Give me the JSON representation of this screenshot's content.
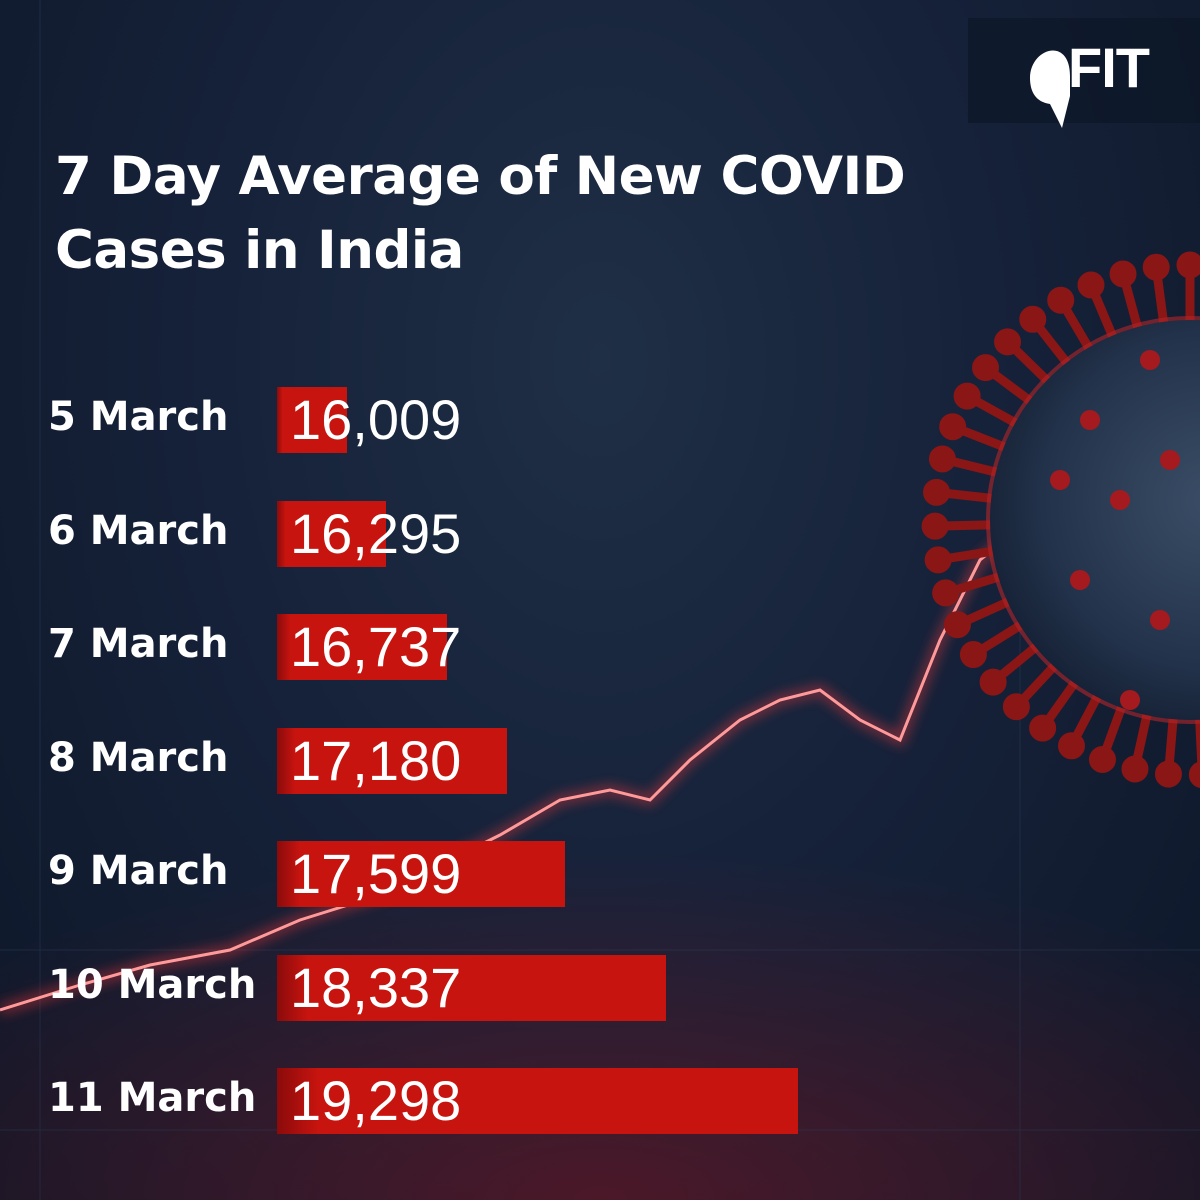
{
  "brand": {
    "name": "FIT"
  },
  "chart_data": {
    "type": "bar",
    "orientation": "horizontal",
    "title": "7 Day Average of New COVID Cases in India",
    "categories": [
      "5 March",
      "6 March",
      "7 March",
      "8 March",
      "9 March",
      "10 March",
      "11 March"
    ],
    "values": [
      16009,
      16295,
      16737,
      17180,
      17599,
      18337,
      19298
    ],
    "value_labels": [
      "16,009",
      "16,295",
      "16,737",
      "17,180",
      "17,599",
      "18,337",
      "19,298"
    ],
    "bar_color": "#c8140f",
    "legend": "none",
    "grid": false
  }
}
